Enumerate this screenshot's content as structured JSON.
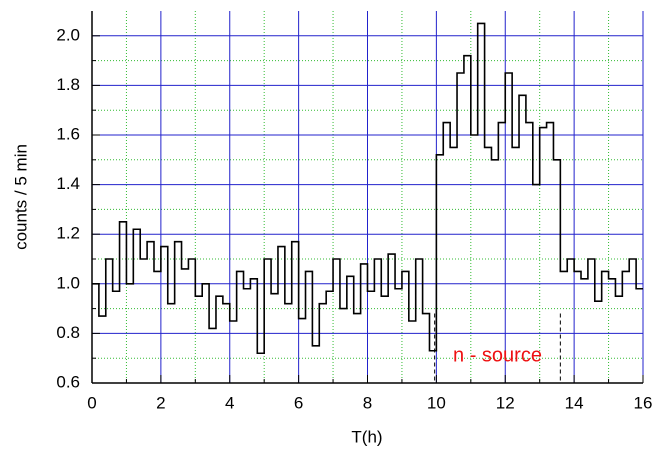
{
  "chart_data": {
    "type": "line",
    "step": "post",
    "xlabel": "T(h)",
    "ylabel": "counts / 5 min",
    "x": [
      0,
      0.2,
      0.4,
      0.6,
      0.8,
      1,
      1.2,
      1.4,
      1.6,
      1.8,
      2,
      2.2,
      2.4,
      2.6,
      2.8,
      3,
      3.2,
      3.4,
      3.6,
      3.8,
      4,
      4.2,
      4.4,
      4.6,
      4.8,
      5,
      5.2,
      5.4,
      5.6,
      5.8,
      6,
      6.2,
      6.4,
      6.6,
      6.8,
      7,
      7.2,
      7.4,
      7.6,
      7.8,
      8,
      8.2,
      8.4,
      8.6,
      8.8,
      9,
      9.2,
      9.4,
      9.6,
      9.8,
      10,
      10.2,
      10.4,
      10.6,
      10.8,
      11,
      11.2,
      11.4,
      11.6,
      11.8,
      12,
      12.2,
      12.4,
      12.6,
      12.8,
      13,
      13.2,
      13.4,
      13.6,
      13.8,
      14,
      14.2,
      14.4,
      14.6,
      14.8,
      15,
      15.2,
      15.4,
      15.6,
      15.8
    ],
    "series": [
      {
        "color": "#000000",
        "values": [
          1.0,
          0.87,
          1.1,
          0.97,
          1.25,
          1.0,
          1.22,
          1.1,
          1.17,
          1.05,
          1.15,
          0.92,
          1.17,
          1.06,
          1.1,
          0.95,
          1.0,
          0.82,
          0.95,
          0.92,
          0.85,
          1.05,
          0.98,
          1.02,
          0.72,
          1.1,
          0.96,
          1.15,
          0.92,
          1.17,
          0.86,
          1.05,
          0.75,
          0.92,
          0.97,
          1.1,
          0.9,
          1.03,
          0.88,
          1.08,
          0.97,
          1.1,
          0.95,
          1.12,
          0.98,
          1.05,
          0.85,
          1.1,
          0.88,
          0.73,
          1.52,
          1.65,
          1.55,
          1.85,
          1.92,
          1.6,
          2.05,
          1.55,
          1.5,
          1.65,
          1.85,
          1.55,
          1.76,
          1.65,
          1.4,
          1.63,
          1.65,
          1.5,
          1.05,
          1.1,
          1.05,
          1.02,
          1.1,
          0.93,
          1.05,
          1.02,
          0.95,
          1.05,
          1.1,
          0.98
        ]
      }
    ],
    "xlim": [
      0,
      16
    ],
    "ylim": [
      0.6,
      2.1
    ],
    "xticks": [
      0,
      2,
      4,
      6,
      8,
      10,
      12,
      14,
      16
    ],
    "yticks": [
      0.6,
      0.8,
      {
        "value": 1,
        "label": "1.0"
      },
      1.2,
      1.4,
      1.6,
      1.8,
      {
        "value": 2,
        "label": "2.0"
      }
    ],
    "xminorticks": [
      1,
      3,
      5,
      7,
      9,
      11,
      13,
      15
    ],
    "yminorticks": [
      0.7,
      0.9,
      1.1,
      1.3,
      1.5,
      1.7,
      1.9
    ],
    "grid": true,
    "grid_color": "#2222cc",
    "minor_grid_color": "#33bb33",
    "annotation": {
      "text": "n - source",
      "color": "#ee1111",
      "x": [
        9.95,
        13.6
      ],
      "y": 0.88
    }
  }
}
